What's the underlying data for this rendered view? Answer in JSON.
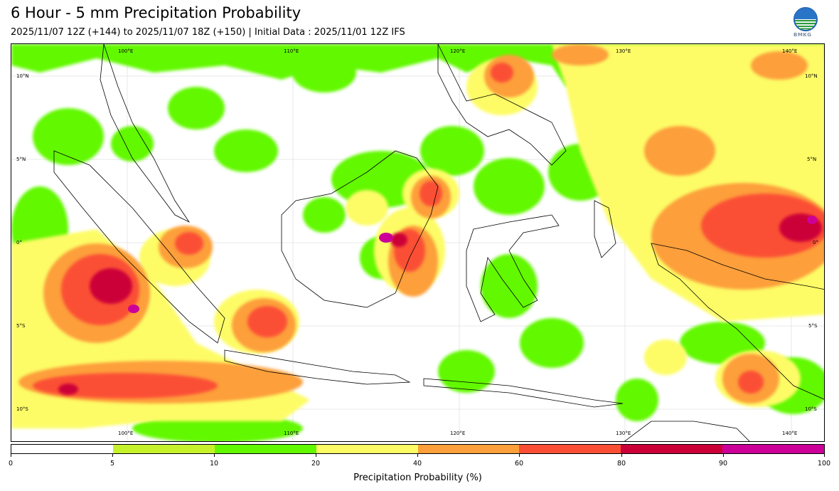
{
  "header": {
    "title": "6 Hour - 5 mm Precipitation Probability",
    "subtitle": "2025/11/07 12Z (+144) to 2025/11/07 18Z (+150) | Initial Data : 2025/11/01 12Z IFS",
    "logo_text": "BMKG"
  },
  "map": {
    "top_lon_labels": [
      "100°E",
      "110°E",
      "120°E",
      "130°E",
      "140°E"
    ],
    "bottom_lon_labels": [
      "100°E",
      "110°E",
      "120°E",
      "130°E",
      "140°E"
    ],
    "left_lat_labels": [
      "10°N",
      "5°N",
      "0°",
      "5°S",
      "10°S"
    ],
    "right_lat_labels": [
      "10°N",
      "5°N",
      "0°",
      "5°S",
      "10°S"
    ]
  },
  "colorbar": {
    "label": "Precipitation Probability (%)",
    "ticks": [
      "0",
      "5",
      "10",
      "20",
      "40",
      "60",
      "80",
      "90",
      "100"
    ],
    "colors": [
      "#ffffff",
      "#c6f22c",
      "#62f800",
      "#fdfc66",
      "#fd9f3a",
      "#fb4f35",
      "#cc0039",
      "#cc0099"
    ]
  }
}
